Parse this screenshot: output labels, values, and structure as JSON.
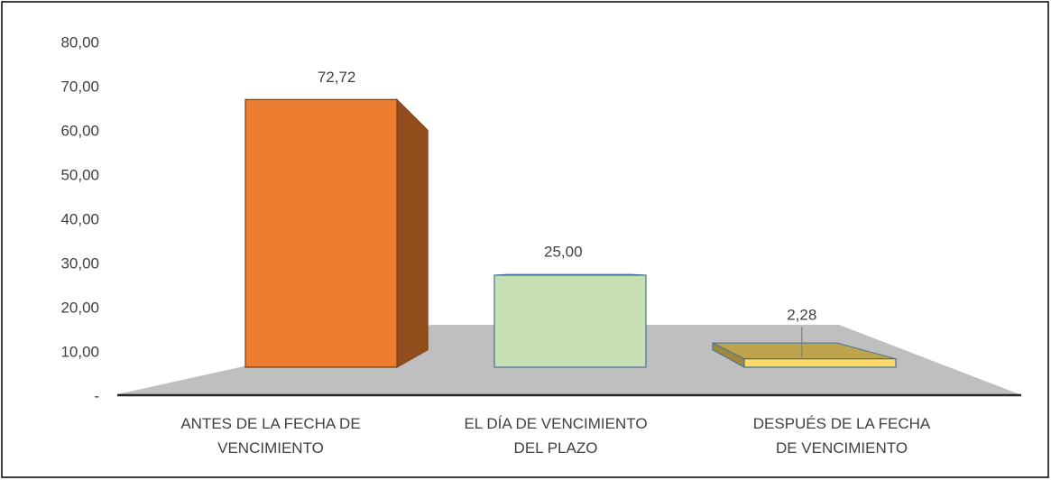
{
  "chart_data": {
    "type": "bar3d",
    "categories": [
      "ANTES DE LA FECHA DE VENCIMIENTO",
      "EL DÍA DE VENCIMIENTO DEL PLAZO",
      "DESPUÉS DE LA FECHA DE VENCIMIENTO"
    ],
    "values": [
      72.72,
      25.0,
      2.28
    ],
    "value_labels": [
      "72,72",
      "25,00",
      "2,28"
    ],
    "colors": [
      "#ed7d31",
      "#c6e0b4",
      "#ffd966"
    ],
    "ylim": [
      0,
      80
    ],
    "yticks": [
      {
        "value": 0,
        "label": "-"
      },
      {
        "value": 10,
        "label": "10,00"
      },
      {
        "value": 20,
        "label": "20,00"
      },
      {
        "value": 30,
        "label": "30,00"
      },
      {
        "value": 40,
        "label": "40,00"
      },
      {
        "value": 50,
        "label": "50,00"
      },
      {
        "value": 60,
        "label": "60,00"
      },
      {
        "value": 70,
        "label": "70,00"
      },
      {
        "value": 80,
        "label": "80,00"
      }
    ]
  }
}
